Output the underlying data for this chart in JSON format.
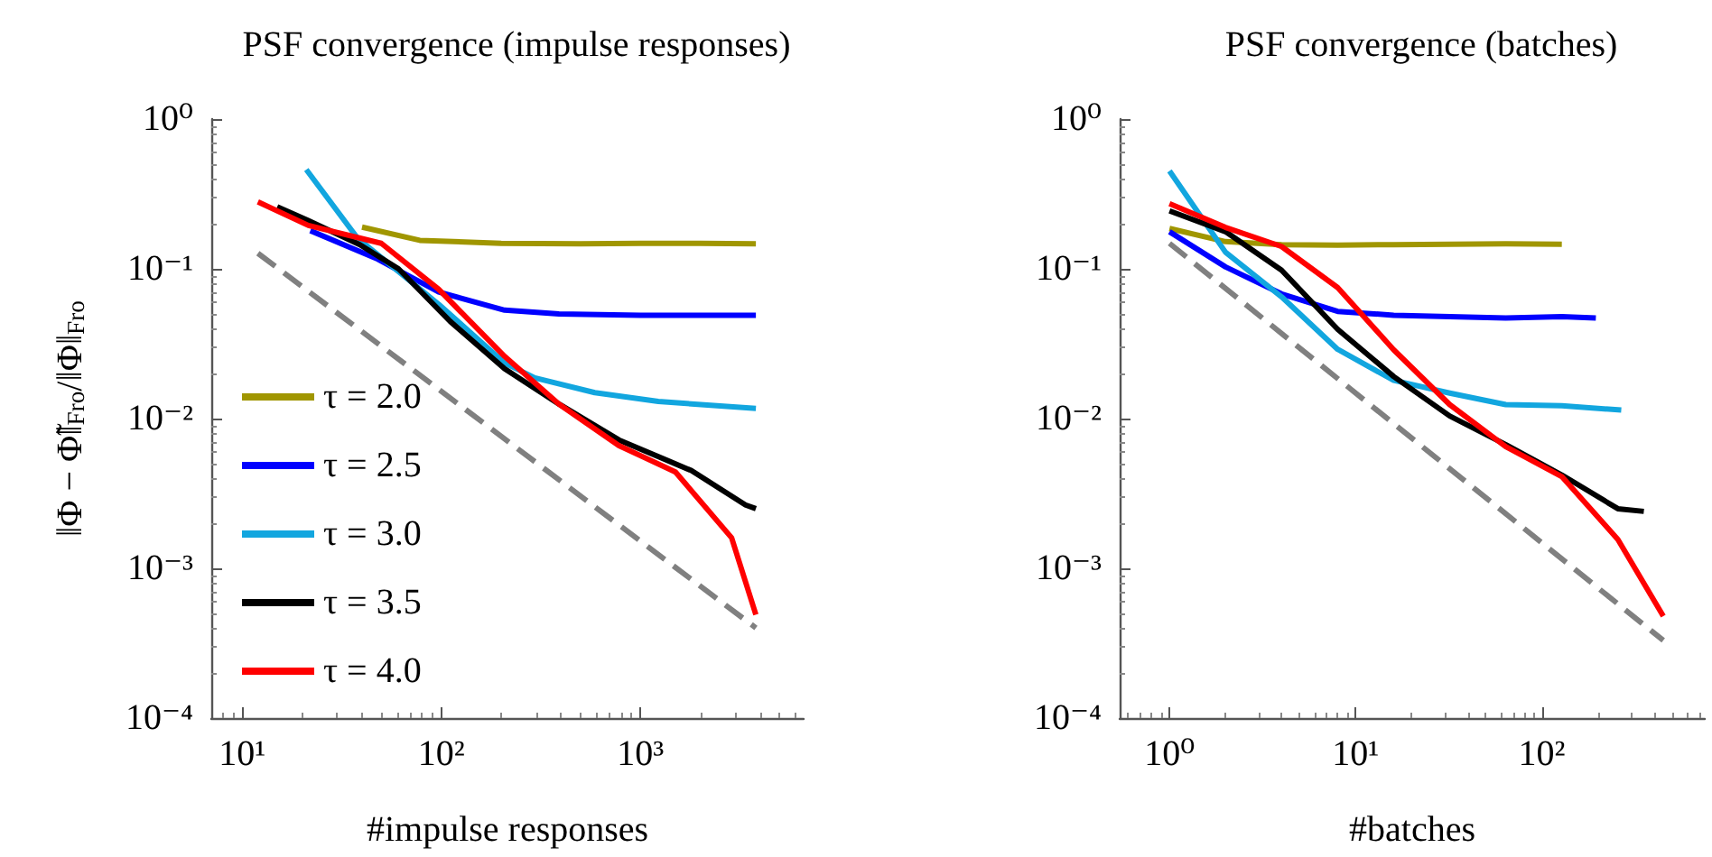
{
  "chart_data": [
    {
      "type": "line",
      "title": "PSF convergence (impulse responses)",
      "xlabel": "#impulse responses",
      "ylabel": "‖Φ − Φ̃‖$_{Fro}$/‖Φ‖$_{Fro}$",
      "log": "xy",
      "grid": false,
      "legend": "bottom left",
      "marker": "none",
      "line_style": "solid",
      "xlim": [
        7,
        6600
      ],
      "xticks": [
        {
          "value": 10,
          "label": "10¹"
        },
        {
          "value": 100,
          "label": "10²"
        },
        {
          "value": 1000,
          "label": "10³"
        }
      ],
      "ylim": [
        0.0001,
        1
      ],
      "yticks": [
        {
          "value": 0.0001,
          "label": "10⁻⁴"
        },
        {
          "value": 0.001,
          "label": "10⁻³"
        },
        {
          "value": 0.01,
          "label": "10⁻²"
        },
        {
          "value": 0.1,
          "label": "10⁻¹"
        },
        {
          "value": 1,
          "label": "10⁰"
        }
      ],
      "series": [
        {
          "name": "τ = 2.0",
          "color": "#a09600",
          "x": [
            40,
            78,
            200,
            500,
            1000,
            2000,
            3800
          ],
          "values": [
            0.19,
            0.155,
            0.148,
            0.147,
            0.148,
            0.148,
            0.147
          ]
        },
        {
          "name": "τ = 2.5",
          "color": "#0000ff",
          "x": [
            22,
            48,
            97,
            208,
            390,
            1000,
            3800
          ],
          "values": [
            0.18,
            0.116,
            0.07,
            0.053,
            0.05,
            0.049,
            0.049
          ]
        },
        {
          "name": "τ = 3.0",
          "color": "#12a6df",
          "x": [
            21,
            38,
            97,
            208,
            295,
            590,
            1230,
            3800
          ],
          "values": [
            0.46,
            0.16,
            0.058,
            0.0235,
            0.0187,
            0.0149,
            0.013,
            0.0117
          ]
        },
        {
          "name": "τ = 3.5",
          "color": "#000000",
          "x": [
            15,
            21.5,
            39,
            61,
            111,
            208,
            390,
            780,
            1800,
            3370,
            3800
          ],
          "values": [
            0.26,
            0.21,
            0.145,
            0.1,
            0.0445,
            0.0215,
            0.0125,
            0.0072,
            0.0045,
            0.00265,
            0.0025
          ]
        },
        {
          "name": "τ = 4.0",
          "color": "#ff0000",
          "x": [
            12,
            21.5,
            50,
            97,
            208,
            390,
            780,
            1500,
            2870,
            3800
          ],
          "values": [
            0.28,
            0.195,
            0.148,
            0.073,
            0.026,
            0.0125,
            0.0066,
            0.0044,
            0.0016,
            0.00049
          ]
        },
        {
          "color": "#808080",
          "line_style": "dashed",
          "x": [
            12,
            3800
          ],
          "values": [
            0.127,
            0.0004
          ]
        }
      ]
    },
    {
      "type": "line",
      "title": "PSF convergence (batches)",
      "xlabel": "#batches",
      "log": "xy",
      "grid": false,
      "legend": false,
      "marker": "none",
      "line_style": "solid",
      "xlim": [
        0.54,
        750
      ],
      "xticks": [
        {
          "value": 1,
          "label": "10⁰"
        },
        {
          "value": 10,
          "label": "10¹"
        },
        {
          "value": 100,
          "label": "10²"
        }
      ],
      "ylim": [
        0.0001,
        1
      ],
      "yticks": [
        {
          "value": 0.0001,
          "label": "10⁻⁴"
        },
        {
          "value": 0.001,
          "label": "10⁻³"
        },
        {
          "value": 0.01,
          "label": "10⁻²"
        },
        {
          "value": 0.1,
          "label": "10⁻¹"
        },
        {
          "value": 1,
          "label": "10⁰"
        }
      ],
      "series": [
        {
          "color": "#a09600",
          "x": [
            1,
            2,
            4,
            8,
            16,
            32,
            64,
            128
          ],
          "values": [
            0.186,
            0.152,
            0.145,
            0.144,
            0.145,
            0.146,
            0.147,
            0.146
          ]
        },
        {
          "color": "#0000ff",
          "x": [
            1,
            2,
            4,
            8,
            16,
            32,
            64,
            128,
            195
          ],
          "values": [
            0.177,
            0.103,
            0.068,
            0.052,
            0.049,
            0.048,
            0.047,
            0.048,
            0.047
          ]
        },
        {
          "color": "#12a6df",
          "x": [
            1,
            2,
            4,
            8,
            16,
            32,
            64,
            128,
            267
          ],
          "values": [
            0.45,
            0.129,
            0.065,
            0.029,
            0.018,
            0.0148,
            0.0124,
            0.0122,
            0.0114
          ]
        },
        {
          "color": "#000000",
          "x": [
            1,
            2,
            4,
            8,
            16,
            32,
            64,
            128,
            256,
            353
          ],
          "values": [
            0.244,
            0.177,
            0.098,
            0.0395,
            0.0191,
            0.0104,
            0.0067,
            0.0042,
            0.0025,
            0.0024
          ]
        },
        {
          "color": "#ff0000",
          "x": [
            1,
            2,
            4,
            8,
            16,
            32,
            64,
            128,
            256,
            449
          ],
          "values": [
            0.272,
            0.189,
            0.141,
            0.075,
            0.0288,
            0.0124,
            0.0065,
            0.0041,
            0.00156,
            0.00048
          ]
        },
        {
          "color": "#808080",
          "line_style": "dashed",
          "x": [
            1,
            449
          ],
          "values": [
            0.148,
            0.00033
          ]
        }
      ]
    }
  ]
}
